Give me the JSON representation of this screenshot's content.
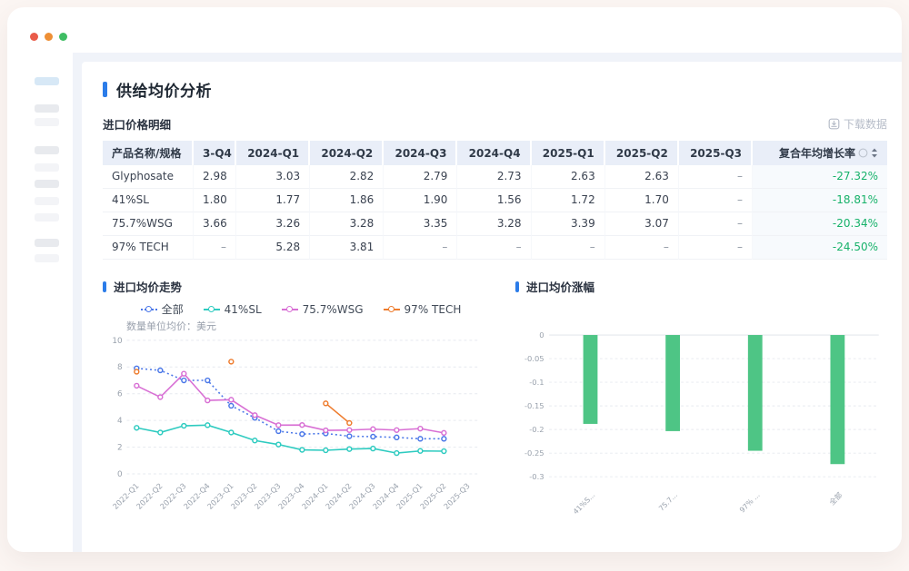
{
  "window": {
    "traffic_lights": {
      "close": "#e95b49",
      "minimize": "#ee8f35",
      "zoom": "#3fbd63"
    }
  },
  "sidebar": {
    "items": [
      {
        "variant": "active"
      },
      {
        "variant": "dark"
      },
      {
        "variant": "light"
      },
      {
        "variant": "dark"
      },
      {
        "variant": "light"
      },
      {
        "variant": "dark"
      },
      {
        "variant": "light"
      },
      {
        "variant": "light"
      },
      {
        "variant": "dark"
      },
      {
        "variant": "light"
      }
    ]
  },
  "page": {
    "title": "供给均价分析"
  },
  "table_section": {
    "title": "进口价格明细",
    "download_label": "下载数据",
    "columns": [
      "产品名称/规格",
      "3-Q4",
      "2024-Q1",
      "2024-Q2",
      "2024-Q3",
      "2024-Q4",
      "2025-Q1",
      "2025-Q2",
      "2025-Q3",
      "复合年均增长率"
    ],
    "rows": [
      {
        "name": "Glyphosate",
        "values": [
          "2.98",
          "3.03",
          "2.82",
          "2.79",
          "2.73",
          "2.63",
          "2.63",
          "–"
        ],
        "cagr": "-27.32%"
      },
      {
        "name": "41%SL",
        "values": [
          "1.80",
          "1.77",
          "1.86",
          "1.90",
          "1.56",
          "1.72",
          "1.70",
          "–"
        ],
        "cagr": "-18.81%"
      },
      {
        "name": "75.7%WSG",
        "values": [
          "3.66",
          "3.26",
          "3.28",
          "3.35",
          "3.28",
          "3.39",
          "3.07",
          "–"
        ],
        "cagr": "-20.34%"
      },
      {
        "name": "97% TECH",
        "values": [
          "–",
          "5.28",
          "3.81",
          "–",
          "–",
          "–",
          "–",
          "–"
        ],
        "cagr": "-24.50%"
      }
    ],
    "cagr_color": "#17b26a"
  },
  "chart_data": [
    {
      "type": "line",
      "title": "进口均价走势",
      "unit_label": "数量单位均价：美元",
      "legend_position": "top-center",
      "grid": true,
      "ylim": [
        0,
        10
      ],
      "yticks": [
        0,
        2,
        4,
        6,
        8,
        10
      ],
      "categories": [
        "2022-Q1",
        "2022-Q2",
        "2022-Q3",
        "2022-Q4",
        "2023-Q1",
        "2023-Q2",
        "2023-Q3",
        "2023-Q4",
        "2024-Q1",
        "2024-Q2",
        "2024-Q3",
        "2024-Q4",
        "2025-Q1",
        "2025-Q2",
        "2025-Q3"
      ],
      "series": [
        {
          "name": "全部",
          "color": "#4a77e8",
          "style": "dotted",
          "values": [
            7.9,
            7.75,
            7.0,
            7.0,
            5.1,
            4.2,
            3.2,
            2.98,
            3.03,
            2.82,
            2.79,
            2.73,
            2.63,
            2.63,
            null
          ]
        },
        {
          "name": "41%SL",
          "color": "#2ecbc0",
          "style": "solid",
          "values": [
            3.45,
            3.1,
            3.6,
            3.65,
            3.1,
            2.5,
            2.2,
            1.8,
            1.77,
            1.86,
            1.9,
            1.56,
            1.72,
            1.7,
            null
          ]
        },
        {
          "name": "75.7%WSG",
          "color": "#d86fd4",
          "style": "solid",
          "values": [
            6.6,
            5.75,
            7.5,
            5.5,
            5.55,
            4.4,
            3.65,
            3.66,
            3.26,
            3.28,
            3.35,
            3.28,
            3.39,
            3.07,
            null
          ]
        },
        {
          "name": "97% TECH",
          "color": "#ee7c2e",
          "style": "solid",
          "values": [
            7.65,
            null,
            null,
            null,
            8.4,
            null,
            null,
            null,
            5.28,
            3.81,
            null,
            null,
            null,
            null,
            null
          ]
        }
      ]
    },
    {
      "type": "bar",
      "title": "进口均价涨幅",
      "grid": true,
      "color": "#4ec585",
      "ylim": [
        -0.3,
        0
      ],
      "yticks": [
        0,
        -0.05,
        -0.1,
        -0.15,
        -0.2,
        -0.25,
        -0.3
      ],
      "categories": [
        "41%S...",
        "75.7...",
        "97% ...",
        "全部"
      ],
      "values": [
        -0.1881,
        -0.2034,
        -0.245,
        -0.2732
      ]
    }
  ]
}
